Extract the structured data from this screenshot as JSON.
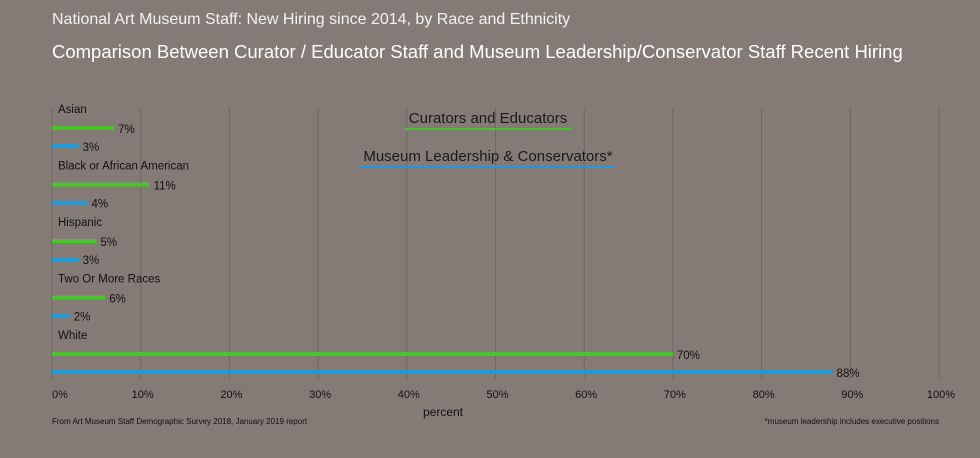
{
  "header": {
    "title": "National Art Museum Staff: New Hiring since 2014, by Race and Ethnicity",
    "subtitle": "Comparison Between Curator / Educator Staff and Museum Leadership/Conservator Staff Recent Hiring"
  },
  "footer": {
    "source": "From Art Museum Staff Demographic Survey 2018, January 2019 report",
    "note": "*museum leadership includes executive positions"
  },
  "colors": {
    "background": "#857b76",
    "curators": "#4cc22e",
    "leadership": "#1f9ad6",
    "grid": "#6f6661"
  },
  "chart_data": {
    "type": "bar",
    "orientation": "horizontal",
    "categories": [
      "Asian",
      "Black or African American",
      "Hispanic",
      "Two Or More Races",
      "White"
    ],
    "series": [
      {
        "name": "Curators and Educators",
        "values": [
          7,
          11,
          5,
          6,
          70
        ],
        "labels": [
          "7%",
          "11%",
          "5%",
          "6%",
          "70%"
        ]
      },
      {
        "name": "Museum Leadership & Conservators*",
        "values": [
          3,
          4,
          3,
          2,
          88
        ],
        "labels": [
          "3%",
          "4%",
          "3%",
          "2%",
          "88%"
        ]
      }
    ],
    "xlim": [
      0,
      100
    ],
    "ticks": [
      0,
      10,
      20,
      30,
      40,
      50,
      60,
      70,
      80,
      90,
      100
    ],
    "tick_labels": [
      "0%",
      "10%",
      "20%",
      "30%",
      "40%",
      "50%",
      "60%",
      "70%",
      "80%",
      "90%",
      "100%"
    ],
    "xlabel": "percent",
    "grid": true,
    "legend_position": "top-center"
  }
}
